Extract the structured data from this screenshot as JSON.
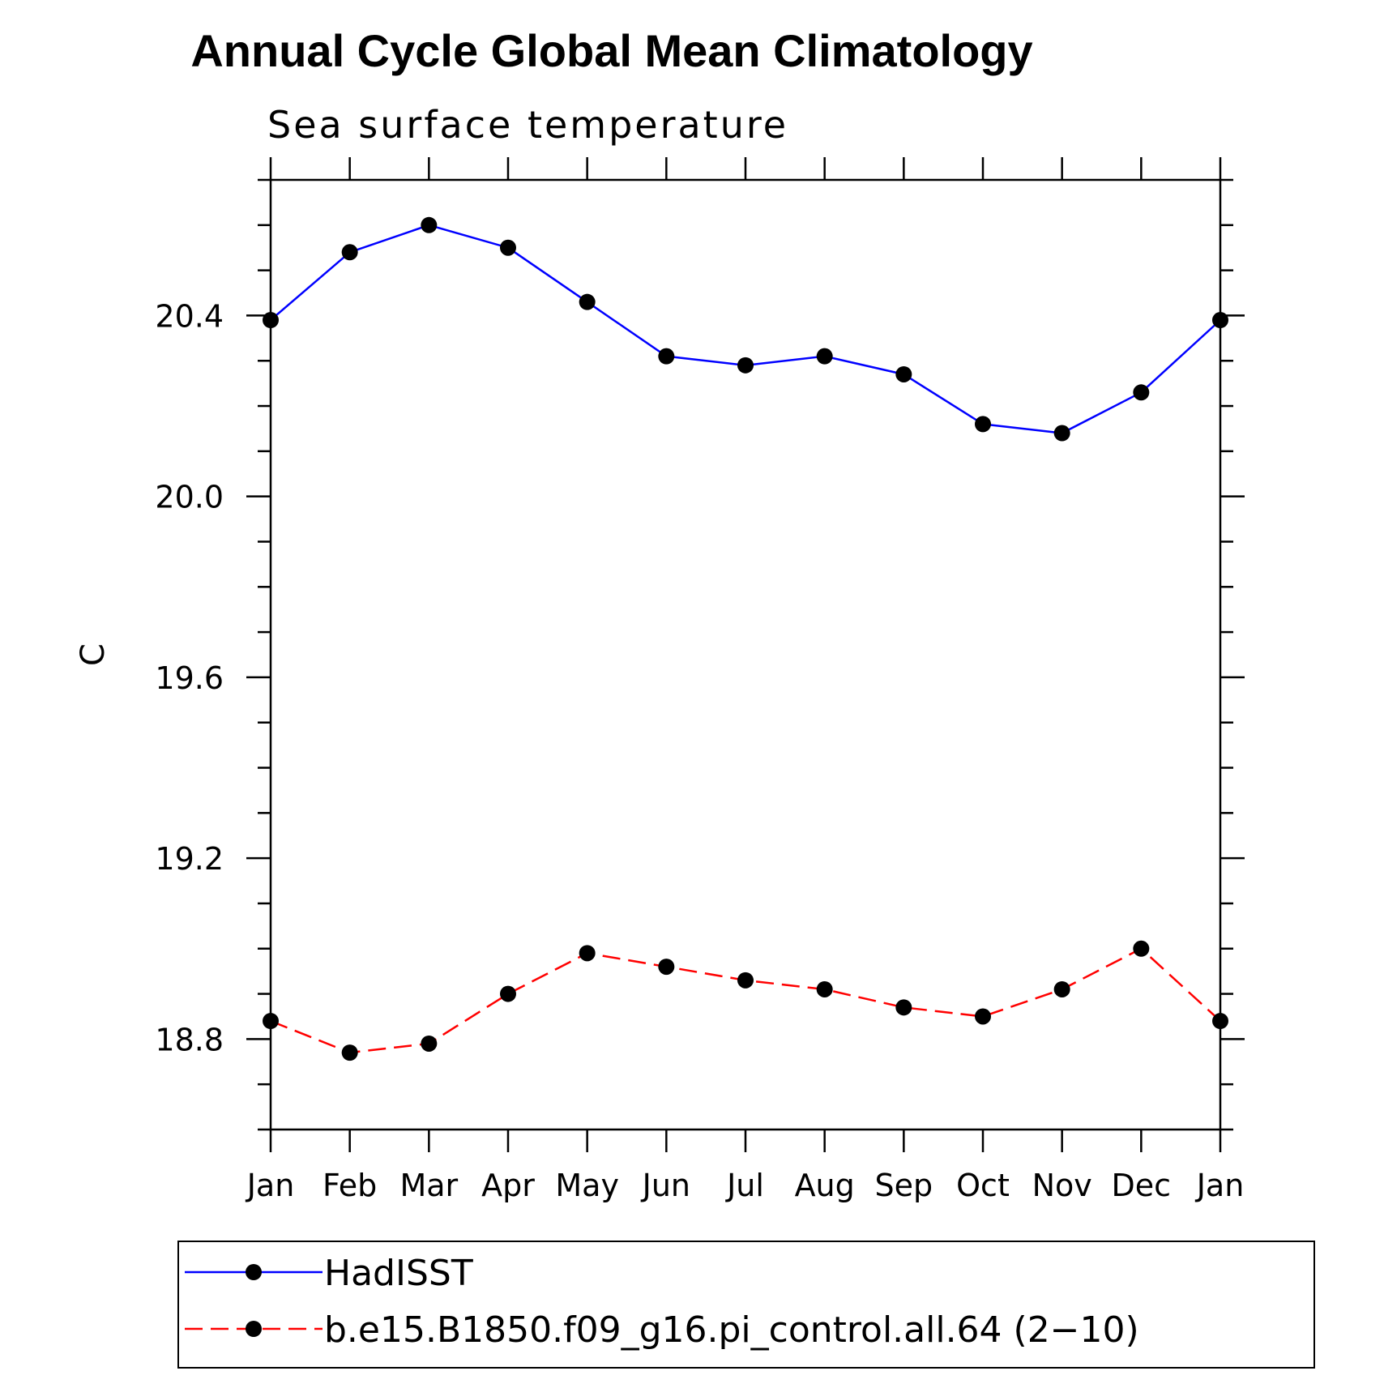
{
  "chart_data": {
    "type": "line",
    "title": "Annual Cycle Global Mean Climatology",
    "subtitle": "Sea surface temperature",
    "xlabel": "",
    "ylabel": "C",
    "categories": [
      "Jan",
      "Feb",
      "Mar",
      "Apr",
      "May",
      "Jun",
      "Jul",
      "Aug",
      "Sep",
      "Oct",
      "Nov",
      "Dec",
      "Jan"
    ],
    "ylim": [
      18.6,
      20.7
    ],
    "y_major_ticks": [
      18.8,
      19.2,
      19.6,
      20.0,
      20.4
    ],
    "y_tick_labels": [
      "18.8",
      "19.2",
      "19.6",
      "20.0",
      "20.4"
    ],
    "y_minor_step": 0.1,
    "grid": false,
    "legend_position": "bottom",
    "series": [
      {
        "name": "HadISST",
        "color": "#0000ff",
        "line_style": "solid",
        "marker": "filled-circle",
        "values": [
          20.39,
          20.54,
          20.6,
          20.55,
          20.43,
          20.31,
          20.29,
          20.31,
          20.27,
          20.16,
          20.14,
          20.23,
          20.39
        ]
      },
      {
        "name": "b.e15.B1850.f09_g16.pi_control.all.64 (2−10)",
        "color": "#ff0000",
        "line_style": "dashed",
        "marker": "filled-circle",
        "values": [
          18.84,
          18.77,
          18.79,
          18.9,
          18.99,
          18.96,
          18.93,
          18.91,
          18.87,
          18.85,
          18.91,
          19.0,
          18.84
        ]
      }
    ]
  }
}
